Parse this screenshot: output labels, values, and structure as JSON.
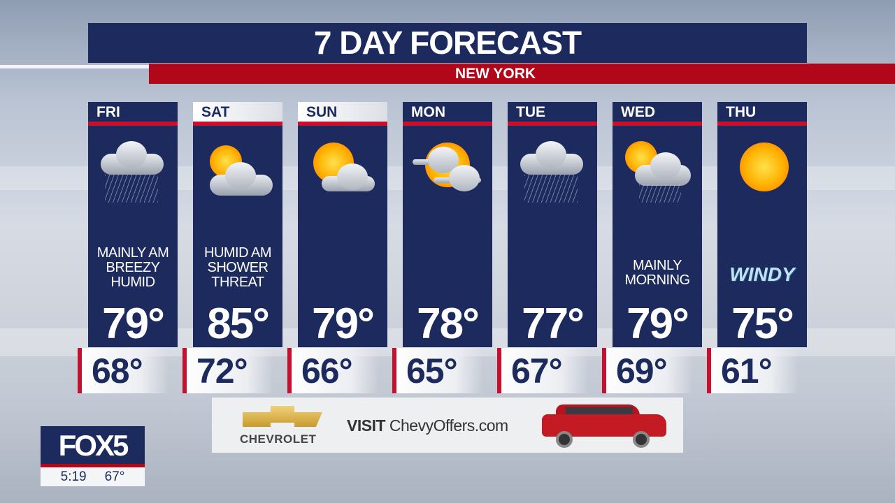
{
  "title": "7 DAY FORECAST",
  "location": "NEW YORK",
  "colors": {
    "navy": "#1c2a5e",
    "red": "#c8102e",
    "banner_red": "#b0071a"
  },
  "days": [
    {
      "day": "FRI",
      "icon": "cloud-rain-icon",
      "condition": [
        "MAINLY AM",
        "BREEZY",
        "HUMID"
      ],
      "high": "79°",
      "low": "68°",
      "header_style": "dark"
    },
    {
      "day": "SAT",
      "icon": "partly-cloudy-icon",
      "condition": [
        "HUMID AM",
        "SHOWER",
        "THREAT"
      ],
      "high": "85°",
      "low": "72°",
      "header_style": "light"
    },
    {
      "day": "SUN",
      "icon": "mostly-sunny-icon",
      "condition": [],
      "high": "79°",
      "low": "66°",
      "header_style": "light"
    },
    {
      "day": "MON",
      "icon": "sun-haze-icon",
      "condition": [],
      "high": "78°",
      "low": "65°",
      "header_style": "dark"
    },
    {
      "day": "TUE",
      "icon": "cloud-rain-icon",
      "condition": [],
      "high": "77°",
      "low": "67°",
      "header_style": "dark"
    },
    {
      "day": "WED",
      "icon": "sun-cloud-rain-icon",
      "condition": [
        "MAINLY",
        "MORNING"
      ],
      "high": "79°",
      "low": "69°",
      "header_style": "dark"
    },
    {
      "day": "THU",
      "icon": "sunny-icon",
      "condition": [],
      "badge": "WINDY",
      "high": "75°",
      "low": "61°",
      "header_style": "dark"
    }
  ],
  "ad": {
    "brand": "CHEVROLET",
    "text_prefix": "VISIT",
    "text_site": "ChevyOffers.com"
  },
  "station": {
    "logo": "FOX5",
    "time": "5:19",
    "temp": "67°"
  }
}
